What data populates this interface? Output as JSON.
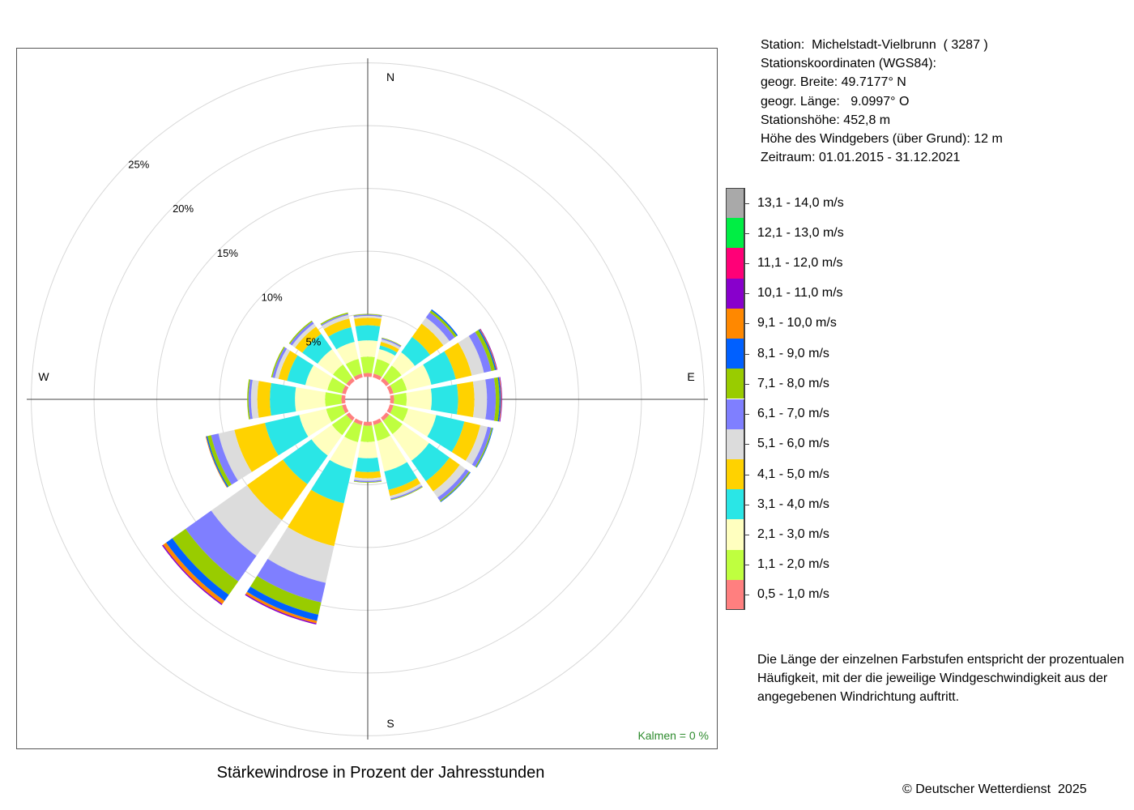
{
  "chart_data": {
    "type": "wind-rose",
    "title": "Stärkewindrose in Prozent der Jahresstunden",
    "directions": [
      "N",
      "NNE",
      "NE",
      "ENE",
      "E",
      "ESE",
      "SE",
      "SSE",
      "S",
      "SSW",
      "SW",
      "WSW",
      "W",
      "WNW",
      "NW",
      "NNW"
    ],
    "direction_angles": [
      0,
      22.5,
      45,
      67.5,
      90,
      112.5,
      135,
      157.5,
      180,
      202.5,
      225,
      247.5,
      270,
      292.5,
      315,
      337.5
    ],
    "axis_labels": {
      "N": "N",
      "E": "E",
      "S": "S",
      "W": "W"
    },
    "ring_values": [
      5,
      10,
      15,
      20,
      25
    ],
    "ring_labels": [
      "5%",
      "10%",
      "15%",
      "20%",
      "25%"
    ],
    "unit": "% der Jahresstunden",
    "calm_offset": 1.8,
    "speed_classes": [
      {
        "label": "0,5 - 1,0 m/s",
        "color": "#ff7f7f"
      },
      {
        "label": "1,1 - 2,0 m/s",
        "color": "#bfff3f"
      },
      {
        "label": "2,1 - 3,0 m/s",
        "color": "#ffffbf"
      },
      {
        "label": "3,1 - 4,0 m/s",
        "color": "#2ae6e6"
      },
      {
        "label": "4,1 - 5,0 m/s",
        "color": "#ffd200"
      },
      {
        "label": "5,1 - 6,0 m/s",
        "color": "#dcdcdc"
      },
      {
        "label": "6,1 - 7,0 m/s",
        "color": "#7f7fff"
      },
      {
        "label": "7,1 - 8,0 m/s",
        "color": "#99cc00"
      },
      {
        "label": "8,1 - 9,0 m/s",
        "color": "#0060ff"
      },
      {
        "label": "9,1 - 10,0 m/s",
        "color": "#ff8800"
      },
      {
        "label": "10,1 - 11,0 m/s",
        "color": "#8800cc"
      },
      {
        "label": "11,1 - 12,0 m/s",
        "color": "#ff0077"
      },
      {
        "label": "12,1 - 13,0 m/s",
        "color": "#00ee44"
      },
      {
        "label": "13,1 - 14,0 m/s",
        "color": "#a9a9a9"
      }
    ],
    "series": [
      {
        "direction": "N",
        "values": [
          0.3,
          1.3,
          1.3,
          1.2,
          0.6,
          0.15,
          0.1,
          0.05,
          0.0,
          0.0,
          0.0,
          0.0,
          0.0,
          0.0
        ]
      },
      {
        "direction": "NNE",
        "values": [
          0.3,
          1.2,
          0.8,
          0.3,
          0.3,
          0.2,
          0.1,
          0.05,
          0.0,
          0.0,
          0.0,
          0.0,
          0.0,
          0.0
        ]
      },
      {
        "direction": "NE",
        "values": [
          0.3,
          1.2,
          1.3,
          1.5,
          1.3,
          0.6,
          0.5,
          0.2,
          0.1,
          0.0,
          0.0,
          0.0,
          0.0,
          0.0
        ]
      },
      {
        "direction": "ENE",
        "values": [
          0.3,
          1.1,
          2.0,
          2.0,
          1.3,
          1.0,
          0.6,
          0.3,
          0.1,
          0.05,
          0.05,
          0.0,
          0.0,
          0.0
        ]
      },
      {
        "direction": "E",
        "values": [
          0.3,
          1.0,
          2.0,
          2.1,
          1.3,
          1.0,
          0.7,
          0.3,
          0.1,
          0.05,
          0.05,
          0.0,
          0.0,
          0.0
        ]
      },
      {
        "direction": "ESE",
        "values": [
          0.3,
          1.2,
          2.3,
          2.3,
          1.3,
          0.6,
          0.3,
          0.1,
          0.05,
          0.0,
          0.0,
          0.0,
          0.0,
          0.0
        ]
      },
      {
        "direction": "SE",
        "values": [
          0.3,
          1.3,
          2.6,
          2.0,
          1.0,
          0.6,
          0.3,
          0.1,
          0.05,
          0.0,
          0.0,
          0.0,
          0.0,
          0.0
        ]
      },
      {
        "direction": "SSE",
        "values": [
          0.3,
          1.3,
          2.5,
          1.5,
          0.5,
          0.2,
          0.1,
          0.05,
          0.0,
          0.0,
          0.0,
          0.0,
          0.0,
          0.0
        ]
      },
      {
        "direction": "S",
        "values": [
          0.3,
          1.3,
          1.3,
          1.1,
          0.5,
          0.2,
          0.1,
          0.05,
          0.0,
          0.0,
          0.0,
          0.0,
          0.0,
          0.0
        ]
      },
      {
        "direction": "SSW",
        "values": [
          0.3,
          1.4,
          2.2,
          2.8,
          3.5,
          3.0,
          1.6,
          1.0,
          0.5,
          0.2,
          0.1,
          0.0,
          0.0,
          0.0
        ]
      },
      {
        "direction": "SW",
        "values": [
          0.3,
          1.4,
          2.0,
          2.8,
          3.5,
          3.5,
          2.5,
          1.3,
          0.6,
          0.3,
          0.1,
          0.0,
          0.0,
          0.0
        ]
      },
      {
        "direction": "WSW",
        "values": [
          0.3,
          1.3,
          2.2,
          2.8,
          2.5,
          1.3,
          0.6,
          0.3,
          0.1,
          0.05,
          0.0,
          0.0,
          0.0,
          0.0
        ]
      },
      {
        "direction": "W",
        "values": [
          0.3,
          1.3,
          2.4,
          2.0,
          1.0,
          0.5,
          0.2,
          0.1,
          0.0,
          0.0,
          0.0,
          0.0,
          0.0,
          0.0
        ]
      },
      {
        "direction": "WNW",
        "values": [
          0.3,
          1.2,
          1.8,
          1.5,
          0.7,
          0.3,
          0.2,
          0.1,
          0.0,
          0.0,
          0.0,
          0.0,
          0.0,
          0.0
        ]
      },
      {
        "direction": "NW",
        "values": [
          0.3,
          1.3,
          1.5,
          1.5,
          0.7,
          0.3,
          0.2,
          0.1,
          0.0,
          0.0,
          0.0,
          0.0,
          0.0,
          0.0
        ]
      },
      {
        "direction": "NNW",
        "values": [
          0.3,
          1.2,
          1.4,
          1.2,
          0.7,
          0.3,
          0.1,
          0.1,
          0.0,
          0.0,
          0.0,
          0.0,
          0.0,
          0.0
        ]
      }
    ]
  },
  "calm_text": "Kalmen  =  0 %",
  "station_info": [
    "Station:  Michelstadt-Vielbrunn  ( 3287 )",
    "Stationskoordinaten (WGS84):",
    "geogr. Breite: 49.7177° N",
    "geogr. Länge:   9.0997° O",
    "Stationshöhe: 452,8 m",
    "Höhe des Windgebers (über Grund): 12 m",
    "Zeitraum: 01.01.2015 - 31.12.2021"
  ],
  "note": "Die Länge der einzelnen Farbstufen entspricht der prozentualen Häufigkeit, mit der die jeweilige Windgeschwindigkeit aus der angegebenen Windrichtung auftritt.",
  "copyright": "© Deutscher Wetterdienst  2025"
}
